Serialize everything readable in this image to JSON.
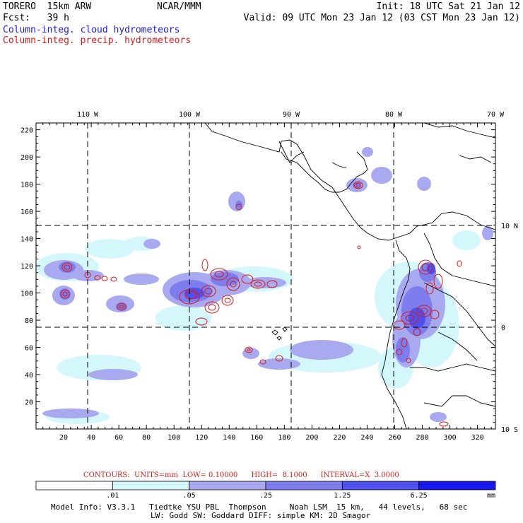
{
  "header": {
    "model": "TORERO  15km ARW",
    "forecast": "Fcst:   39 h",
    "center": "NCAR/MMM",
    "init": "Init: 18 UTC Sat 21 Jan 12",
    "valid": "Valid: 09 UTC Mon 23 Jan 12 (03 CST Mon 23 Jan 12)"
  },
  "legend": {
    "cloud": "Column-integ. cloud hydrometeors",
    "precip": "Column-integ. precip. hydrometeors",
    "cloud_color": "#1a1ad6",
    "precip_color": "#d61a1a"
  },
  "map": {
    "longitude_labels": [
      "110 W",
      "100 W",
      "90 W",
      "80 W",
      "70 W"
    ],
    "latitude_labels": [
      "10 N",
      "0",
      "10 S"
    ],
    "x_ticks": [
      "20",
      "40",
      "60",
      "80",
      "100",
      "120",
      "140",
      "160",
      "180",
      "200",
      "220",
      "240",
      "260",
      "280",
      "300",
      "320"
    ],
    "y_ticks": [
      "20",
      "40",
      "60",
      "80",
      "100",
      "120",
      "140",
      "160",
      "180",
      "200",
      "220"
    ],
    "x_range": [
      0,
      333
    ],
    "y_range": [
      0,
      225
    ]
  },
  "contours": {
    "text": "CONTOURS:  UNITS=mm  LOW= 0.10000      HIGH=  8.1000      INTERVAL=X  3.0000"
  },
  "colorbar": {
    "labels": [
      ".01",
      ".05",
      ".25",
      "1.25",
      "6.25"
    ],
    "unit": "mm",
    "colors": [
      "#ffffff",
      "#d4f7fb",
      "#a9a9f0",
      "#7d7ded",
      "#5050ee",
      "#1818f0"
    ]
  },
  "model_info": {
    "line1": "Model Info: V3.3.1   Tiedtke YSU PBL  Thompson     Noah LSM  15 km,   44 levels,   68 sec",
    "line2": "LW: Godd SW: Goddard DIFF: simple KM: 2D Smagor"
  }
}
